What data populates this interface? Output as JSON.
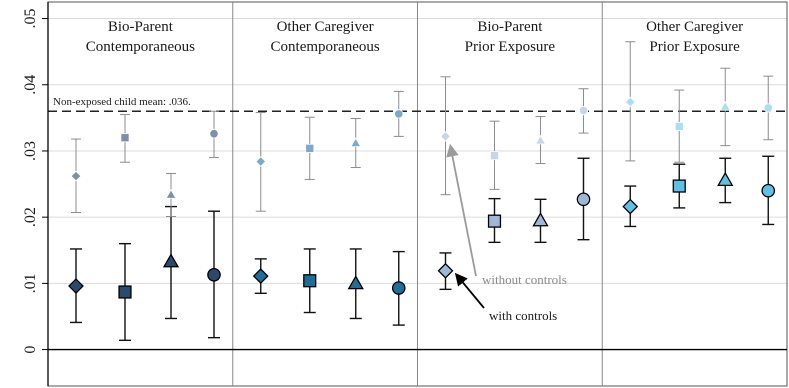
{
  "chart_data": {
    "type": "scatter",
    "title": "",
    "xlabel": "",
    "ylabel": "",
    "ylim": [
      -0.0055,
      0.0525
    ],
    "y_ticks": [
      0,
      0.01,
      0.02,
      0.03,
      0.04,
      0.05
    ],
    "y_tick_labels": [
      "0",
      ".01",
      ".02",
      ".03",
      ".04",
      ".05"
    ],
    "grid": true,
    "reference_line": {
      "value": 0.036,
      "label": "Non-exposed child mean: .036."
    },
    "panels": [
      {
        "title_line1": "Bio-Parent",
        "title_line2": "Contemporaneous"
      },
      {
        "title_line1": "Other Caregiver",
        "title_line2": "Contemporaneous"
      },
      {
        "title_line1": "Bio-Parent",
        "title_line2": "Prior Exposure"
      },
      {
        "title_line1": "Other Caregiver",
        "title_line2": "Prior Exposure"
      }
    ],
    "marker_shapes": [
      "diamond",
      "square",
      "triangle",
      "circle"
    ],
    "panel_colors": {
      "with_controls": [
        "#2a4a6e",
        "#1d6e9a",
        "#9fb7d6",
        "#5dc1e6"
      ],
      "without_controls": [
        "#7e8fa6",
        "#7fa7c8",
        "#c6d6e8",
        "#a8dff3"
      ]
    },
    "series": [
      {
        "name": "with controls",
        "points": [
          {
            "panel": 0,
            "marker": "diamond",
            "y": 0.0096,
            "lo": 0.0041,
            "hi": 0.0152
          },
          {
            "panel": 0,
            "marker": "square",
            "y": 0.0087,
            "lo": 0.0014,
            "hi": 0.016
          },
          {
            "panel": 0,
            "marker": "triangle",
            "y": 0.0133,
            "lo": 0.0047,
            "hi": 0.0216
          },
          {
            "panel": 0,
            "marker": "circle",
            "y": 0.0113,
            "lo": 0.0018,
            "hi": 0.0209
          },
          {
            "panel": 1,
            "marker": "diamond",
            "y": 0.0111,
            "lo": 0.0085,
            "hi": 0.0137
          },
          {
            "panel": 1,
            "marker": "square",
            "y": 0.0104,
            "lo": 0.0056,
            "hi": 0.0152
          },
          {
            "panel": 1,
            "marker": "triangle",
            "y": 0.01,
            "lo": 0.0047,
            "hi": 0.0152
          },
          {
            "panel": 1,
            "marker": "circle",
            "y": 0.0093,
            "lo": 0.0037,
            "hi": 0.0148
          },
          {
            "panel": 2,
            "marker": "diamond",
            "y": 0.0119,
            "lo": 0.0091,
            "hi": 0.0146
          },
          {
            "panel": 2,
            "marker": "square",
            "y": 0.0194,
            "lo": 0.0162,
            "hi": 0.0228
          },
          {
            "panel": 2,
            "marker": "triangle",
            "y": 0.0195,
            "lo": 0.0162,
            "hi": 0.0227
          },
          {
            "panel": 2,
            "marker": "circle",
            "y": 0.0227,
            "lo": 0.0166,
            "hi": 0.0289
          },
          {
            "panel": 3,
            "marker": "diamond",
            "y": 0.0216,
            "lo": 0.0186,
            "hi": 0.0247
          },
          {
            "panel": 3,
            "marker": "square",
            "y": 0.0247,
            "lo": 0.0214,
            "hi": 0.028
          },
          {
            "panel": 3,
            "marker": "triangle",
            "y": 0.0256,
            "lo": 0.0222,
            "hi": 0.0289
          },
          {
            "panel": 3,
            "marker": "circle",
            "y": 0.024,
            "lo": 0.0189,
            "hi": 0.0292
          }
        ]
      },
      {
        "name": "without controls",
        "points": [
          {
            "panel": 0,
            "marker": "diamond",
            "y": 0.0262,
            "lo": 0.0207,
            "hi": 0.0318
          },
          {
            "panel": 0,
            "marker": "square",
            "y": 0.032,
            "lo": 0.0283,
            "hi": 0.0355
          },
          {
            "panel": 0,
            "marker": "triangle",
            "y": 0.0234,
            "lo": 0.0201,
            "hi": 0.0266
          },
          {
            "panel": 0,
            "marker": "circle",
            "y": 0.0326,
            "lo": 0.029,
            "hi": 0.036
          },
          {
            "panel": 1,
            "marker": "diamond",
            "y": 0.0284,
            "lo": 0.0209,
            "hi": 0.0358
          },
          {
            "panel": 1,
            "marker": "square",
            "y": 0.0304,
            "lo": 0.0257,
            "hi": 0.0351
          },
          {
            "panel": 1,
            "marker": "triangle",
            "y": 0.0312,
            "lo": 0.0275,
            "hi": 0.0349
          },
          {
            "panel": 1,
            "marker": "circle",
            "y": 0.0356,
            "lo": 0.0322,
            "hi": 0.039
          },
          {
            "panel": 2,
            "marker": "diamond",
            "y": 0.0322,
            "lo": 0.0234,
            "hi": 0.0412
          },
          {
            "panel": 2,
            "marker": "square",
            "y": 0.0293,
            "lo": 0.0242,
            "hi": 0.0345
          },
          {
            "panel": 2,
            "marker": "triangle",
            "y": 0.0316,
            "lo": 0.0281,
            "hi": 0.0352
          },
          {
            "panel": 2,
            "marker": "circle",
            "y": 0.0361,
            "lo": 0.0327,
            "hi": 0.0394
          },
          {
            "panel": 3,
            "marker": "diamond",
            "y": 0.0374,
            "lo": 0.0285,
            "hi": 0.0465
          },
          {
            "panel": 3,
            "marker": "square",
            "y": 0.0337,
            "lo": 0.0283,
            "hi": 0.0392
          },
          {
            "panel": 3,
            "marker": "triangle",
            "y": 0.0367,
            "lo": 0.0308,
            "hi": 0.0425
          },
          {
            "panel": 3,
            "marker": "circle",
            "y": 0.0365,
            "lo": 0.0317,
            "hi": 0.0413
          }
        ]
      }
    ],
    "annotations": [
      {
        "text": "without controls",
        "target_series": "without controls",
        "target_panel": 2,
        "target_marker": "diamond"
      },
      {
        "text": "with controls",
        "target_series": "with controls",
        "target_panel": 2,
        "target_marker": "diamond"
      }
    ]
  }
}
